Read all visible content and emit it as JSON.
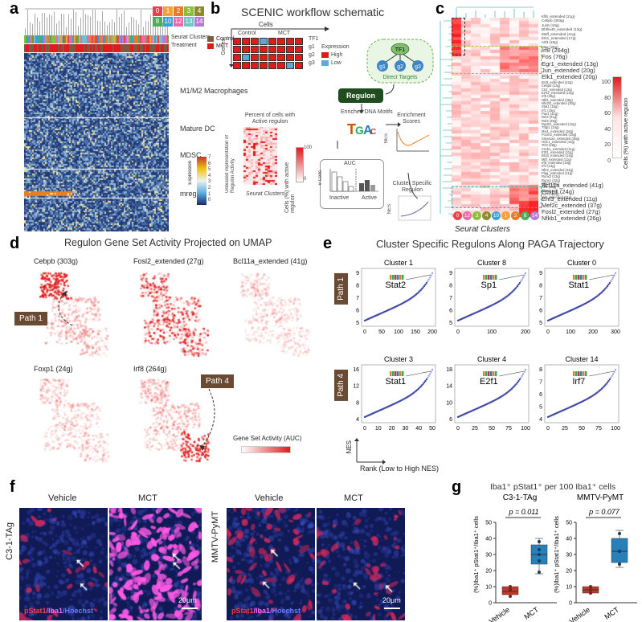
{
  "panel_labels": {
    "a": "a",
    "b": "b",
    "c": "c",
    "d": "d",
    "e": "e",
    "f": "f",
    "g": "g"
  },
  "panel_a": {
    "seurat_clusters": [
      "0",
      "1",
      "2",
      "3",
      "4",
      "8",
      "10",
      "12",
      "13",
      "14"
    ],
    "seurat_label": "Seurat Clusters",
    "treatment_label": "Treatment",
    "legend": [
      {
        "label": "Control",
        "color": "#7a5c42"
      },
      {
        "label": "MCT",
        "color": "#e01b1b"
      }
    ],
    "groups": [
      "M1/M2 Macrophages",
      "Mature DC",
      "MDSC",
      "mregDC"
    ],
    "expression_label": "Expression",
    "expression_ticks": [
      "7",
      "6",
      "5",
      "4",
      "3",
      "2",
      "1",
      "0"
    ]
  },
  "panel_b": {
    "title": "SCENIC workflow schematic",
    "cells_label": "Cells",
    "control_label": "Control",
    "mct_label": "MCT",
    "genes_label": "Genes",
    "gene_rows": [
      "g1",
      "g2",
      "g3"
    ],
    "tf_label": "TF1",
    "expression_label": "Expression",
    "high_label": "High",
    "low_label": "Low",
    "tf_node": "TF1",
    "target_nodes": [
      "g1",
      "g2",
      "g3"
    ],
    "direct_targets": "Direct Targets",
    "regulon": "Regulon",
    "enriched_motifs": "Enriched DNA Motifs",
    "enrichment_scores": "Enrichment Scores",
    "nes": "NES",
    "percent_active": "Percent of cells with Active regulon",
    "unbiased": "Unbiased representation of Regulon Activity",
    "seurat_clusters": "Seurat Clusters",
    "cells_active": "Cells (%) with active regulon",
    "auc": "AUC",
    "n_cells": "# Cells",
    "inactive": "Inactive",
    "active": "Active",
    "cluster_specific": "Cluster Specific Regulon",
    "scale_ticks": [
      "100",
      "0"
    ]
  },
  "panel_c": {
    "rows_top": [
      "Klf6_extended (21g)",
      "Cebpb (303g)",
      "Junb (16g)",
      "Bhlhe40_extended (13g)",
      "Maff_extended (41g)",
      "Ets1_extended (17g)",
      "Atf3 (18g)",
      "Max (20g)"
    ],
    "rows_mid": [
      "Bcl3_extended (22g)",
      "Cebpd (13g)",
      "Ctcf_extended (13g)",
      "Ezh2_extended (14g)",
      "Irf5 (40g)",
      "Nfil3_extended (26g)",
      "Nfe2l2_extended (30g)",
      "Stat1 (15g)",
      "Irf1 (16g)",
      "Pax1 (41g)",
      "Rel3 (21g)",
      "Rel3 (28g)",
      "Rad21_extended (12g)",
      "Tfdp1 (34g)",
      "Mxi1_extended (16g)",
      "Foxm2_extended (15g)",
      "Smarca4_extended (35g)",
      "Hcfc1_extended (13g)",
      "Tcf3 (28g)",
      "Creb1_extended (11g)",
      "E2f1_extended (11g)",
      "Brd3_extended (14g)",
      "Mitf_extended (11g)",
      "Irf8_extended (18g)",
      "Irf1 (13g)",
      "Nfe2_extended (14g)",
      "Plag_extended (11g)",
      "Runx2 (13g)",
      "Runx1 (42g)",
      "Nfkb2 (34g)",
      "Atf4 (13g)",
      "Stat3 (11g)",
      "Rorc1 (11g)",
      "Yy1_extended (11g)"
    ],
    "annot_green": [
      "Irf8 (264g)",
      "Fos (76g)",
      "Egr1_extended (13g)",
      "Jun_extended (20g)",
      "Elk1_extended (20g)"
    ],
    "annot_blue": [
      "Bcl11a_extended (41g)",
      "Foxp1 (24g)",
      "Ehf3_extended (11g)",
      "Mef2c_extended (37g)",
      "Fosl2_extended (27g)",
      "Nfkb1_extended (26g)"
    ],
    "clusters": [
      {
        "label": "0",
        "color": "#e8434a"
      },
      {
        "label": "12",
        "color": "#e86aa8"
      },
      {
        "label": "3",
        "color": "#8bbf3a"
      },
      {
        "label": "4",
        "color": "#8d8b2c"
      },
      {
        "label": "10",
        "color": "#3aa1d6"
      },
      {
        "label": "1",
        "color": "#f1a23a"
      },
      {
        "label": "2",
        "color": "#e67c2a"
      },
      {
        "label": "8",
        "color": "#4cae5b"
      },
      {
        "label": "14",
        "color": "#b87bd5"
      }
    ],
    "seurat_label": "Seurat Clusters",
    "legend_title": "Cells (%) with active regulon",
    "legend_ticks": [
      "100",
      "80",
      "60",
      "40",
      "20",
      "0"
    ]
  },
  "panel_d": {
    "title": "Regulon Gene Set Activity Projected on UMAP",
    "maps": [
      "Cebpb (303g)",
      "Fosl2_extended (27g)",
      "Bcl11a_extended (41g)",
      "Foxp1 (24g)",
      "Irf8 (264g)"
    ],
    "path1": "Path 1",
    "path4": "Path 4",
    "legend": "Gene Set Activity (AUC)"
  },
  "panel_e": {
    "title": "Cluster Specific Regulons Along PAGA Trajectory",
    "path1": "Path 1",
    "path4": "Path 4",
    "ylabel": "NES",
    "xlabel": "Rank (Low to High NES)",
    "plots": [
      {
        "cluster": "Cluster 1",
        "tf": "Stat2",
        "xt": [
          "0",
          "50",
          "100",
          "150",
          "200"
        ],
        "yt": [
          "5",
          "6",
          "7",
          "8",
          "9"
        ]
      },
      {
        "cluster": "Cluster 8",
        "tf": "Sp1",
        "xt": [
          "0",
          "100",
          "200"
        ],
        "yt": [
          "5",
          "6",
          "7",
          "8",
          "9"
        ]
      },
      {
        "cluster": "Cluster 0",
        "tf": "Stat1",
        "xt": [
          "0",
          "100",
          "200",
          "300"
        ],
        "yt": [
          "5",
          "6",
          "7",
          "8",
          "9"
        ]
      },
      {
        "cluster": "Cluster 3",
        "tf": "Stat1",
        "xt": [
          "0",
          "10",
          "20",
          "30",
          "40",
          "50"
        ],
        "yt": [
          "4",
          "8",
          "12",
          "16"
        ]
      },
      {
        "cluster": "Cluster 4",
        "tf": "E2f1",
        "xt": [
          "0",
          "25",
          "50",
          "75",
          "100"
        ],
        "yt": [
          "6",
          "10",
          "14",
          "18"
        ]
      },
      {
        "cluster": "Cluster 14",
        "tf": "Irf7",
        "xt": [
          "0",
          "25",
          "50",
          "75",
          "100"
        ],
        "yt": [
          "4",
          "5",
          "6",
          "7",
          "8"
        ]
      }
    ]
  },
  "panel_f": {
    "vehicle": "Vehicle",
    "mct": "MCT",
    "model1": "C3-1-TAg",
    "model2": "MMTV-PyMT",
    "stain_p": "pStat1",
    "stain_i": "/Iba1",
    "stain_h": "/Hoechst",
    "scale": "20μm"
  },
  "panel_g": {
    "title": "Iba1⁺ pStat1⁺ per 100 Iba1⁺ cells",
    "ylabel": "(%)Iba1⁺ pStat1⁺/Iba1⁺ cells",
    "plots": [
      {
        "name": "C3-1-TAg",
        "p": "p = 0.011",
        "yt": [
          "0",
          "10",
          "20",
          "30",
          "40",
          "50"
        ],
        "groups": [
          "Vehicle",
          "MCT"
        ],
        "vehicle_box": [
          5,
          10
        ],
        "vehicle_med": 7,
        "vehicle_pts": [
          4,
          8,
          10
        ],
        "mct_box": [
          24,
          36
        ],
        "mct_med": 30,
        "mct_whisk": [
          18,
          40
        ],
        "mct_pts": [
          19,
          26,
          30,
          33,
          38
        ]
      },
      {
        "name": "MMTV-PyMT",
        "p": "p = 0.077",
        "yt": [
          "0",
          "10",
          "20",
          "30",
          "40",
          "50"
        ],
        "groups": [
          "Vehicle",
          "MCT"
        ],
        "vehicle_box": [
          6,
          10
        ],
        "vehicle_med": 8,
        "vehicle_pts": [
          6,
          8,
          10
        ],
        "mct_box": [
          25,
          40
        ],
        "mct_med": 32,
        "mct_whisk": [
          22,
          45
        ],
        "mct_pts": [
          24,
          32,
          43
        ]
      }
    ],
    "vehicle_color": "#c0392b",
    "mct_color": "#2980b9"
  }
}
